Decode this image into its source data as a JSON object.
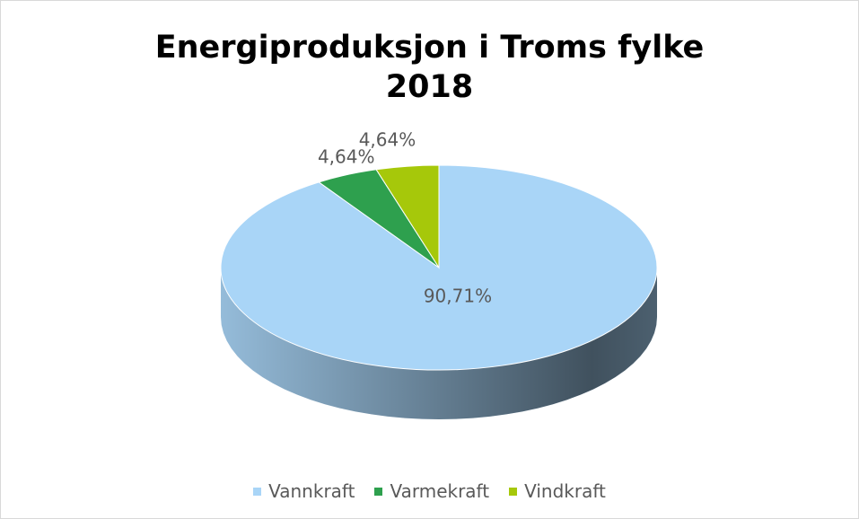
{
  "chart_data": {
    "type": "pie",
    "title": "Energiproduksjon i Troms fylke 2018",
    "categories": [
      "Vannkraft",
      "Varmekraft",
      "Vindkraft"
    ],
    "values": [
      90.71,
      4.64,
      4.64
    ],
    "value_labels": [
      "90,71%",
      "4,64%",
      "4,64%"
    ],
    "colors": [
      "#a9d5f7",
      "#2ea04e",
      "#a6c80a"
    ],
    "legend": "bottom"
  }
}
